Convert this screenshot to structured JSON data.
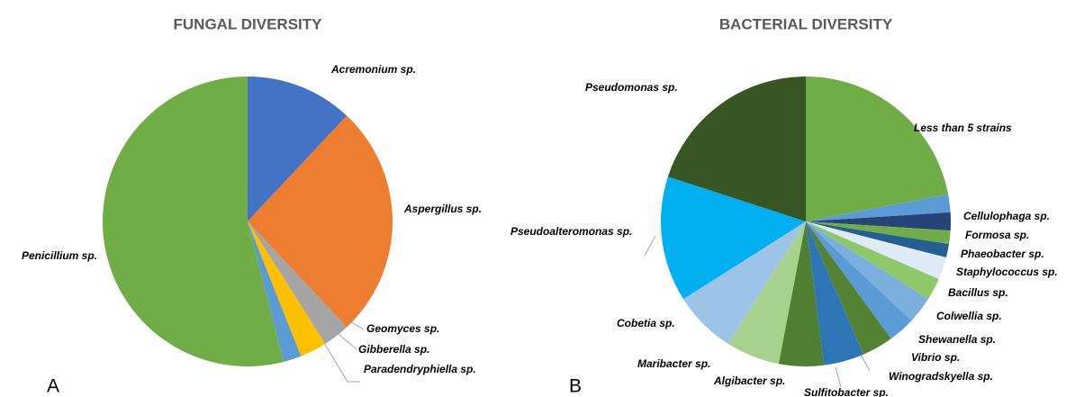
{
  "chart_data": [
    {
      "type": "pie",
      "title": "FUNGAL DIVERSITY",
      "panel": "A",
      "categories": [
        "Acremonium sp.",
        "Aspergillus sp.",
        "Geomyces sp.",
        "Gibberella sp.",
        "Paradendryphiella sp.",
        "Penicillium sp."
      ],
      "values": [
        12,
        26,
        3,
        3,
        2,
        54
      ],
      "colors": [
        "#4472c4",
        "#ed7d31",
        "#a5a5a5",
        "#ffc000",
        "#5b9bd5",
        "#70ad47"
      ]
    },
    {
      "type": "pie",
      "title": "BACTERIAL DIVERSITY",
      "panel": "B",
      "categories": [
        "Less than 5 strains",
        "Cellulophaga sp.",
        "Formosa sp.",
        "Phaeobacter sp.",
        "Staphylococcus sp.",
        "Bacillus sp.",
        "Colwellia sp.",
        "Shewanella sp.",
        "Vibrio sp.",
        "Winogradskyella sp.",
        "Sulfitobacter sp.",
        "Algibacter sp.",
        "Maribacter sp.",
        "Cobetia sp.",
        "Pseudoalteromonas sp.",
        "Pseudomonas sp."
      ],
      "values": [
        22,
        2,
        2,
        1.5,
        1.5,
        2.5,
        2.5,
        3,
        3,
        3.5,
        4.5,
        5,
        6,
        7,
        14,
        20
      ],
      "colors": [
        "#70ad47",
        "#5b9bd5",
        "#264478",
        "#70ad47",
        "#255e91",
        "#deebf7",
        "#8fc86a",
        "#7cafdd",
        "#5b9bd5",
        "#548235",
        "#2e75b6",
        "#4f7f32",
        "#a9d18e",
        "#9dc3e6",
        "#00b0f0",
        "#375623"
      ]
    }
  ]
}
